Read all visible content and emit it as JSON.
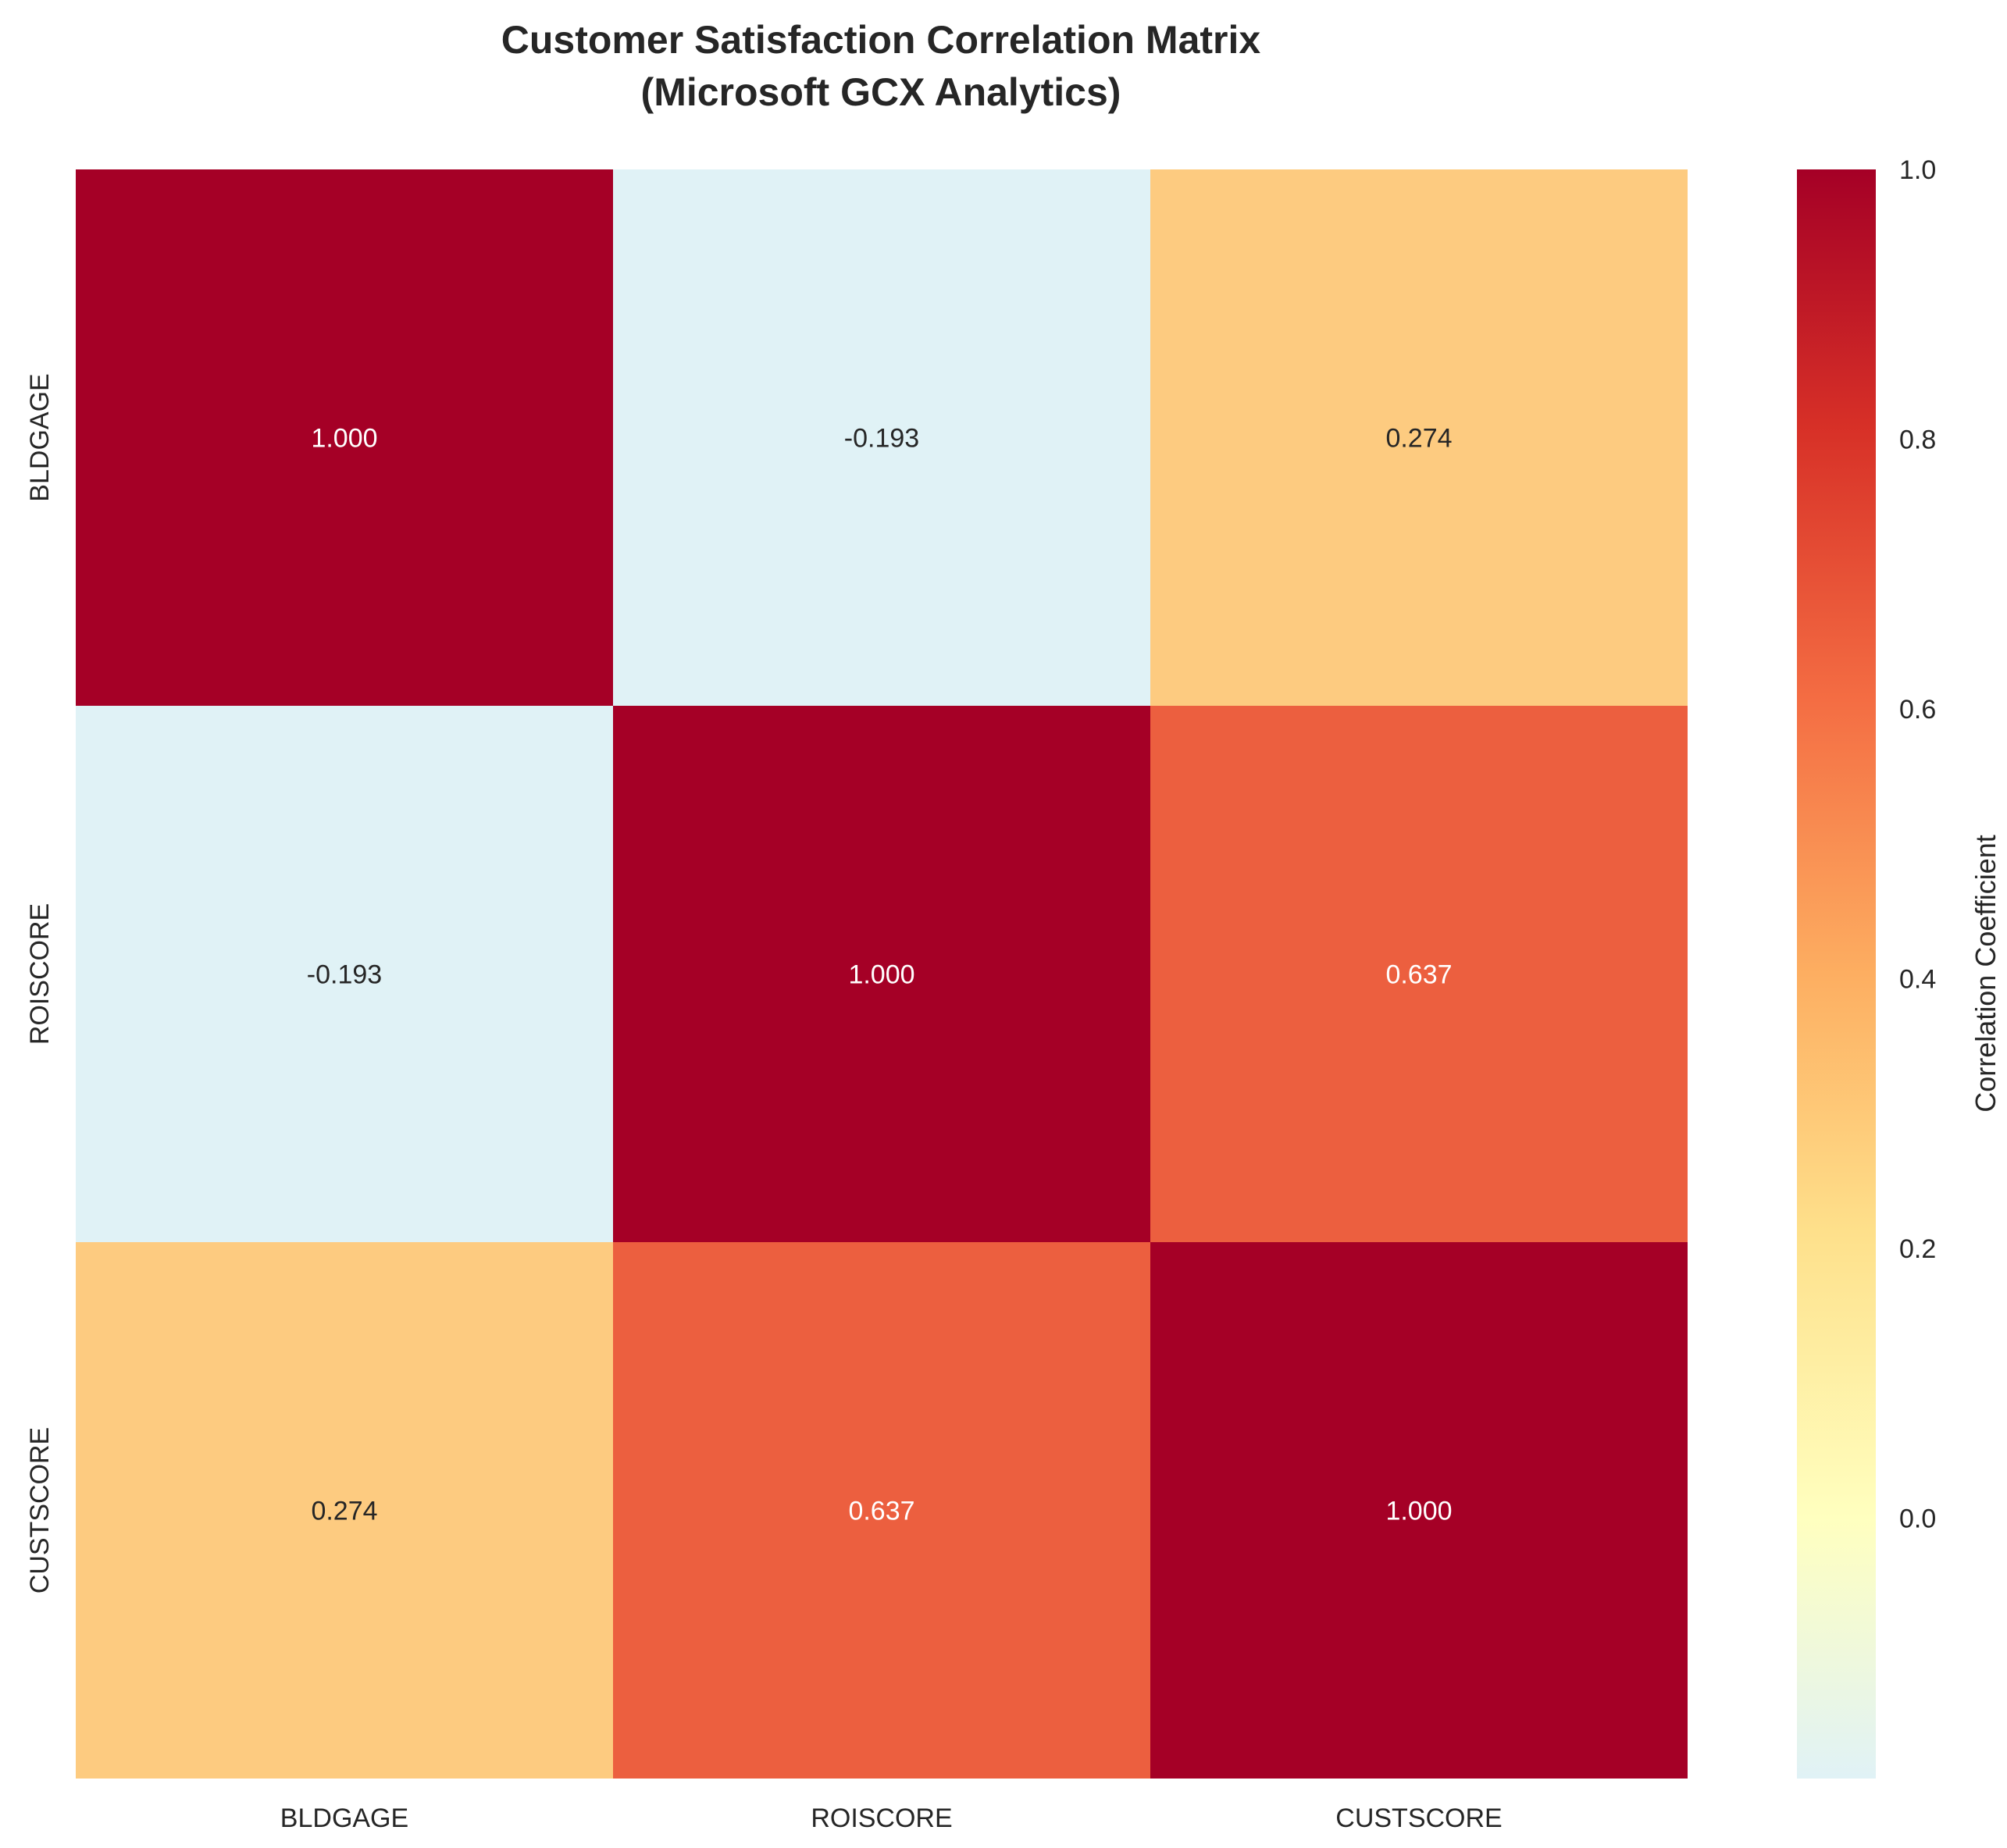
{
  "chart_data": {
    "type": "heatmap",
    "title": "Customer Satisfaction Correlation Matrix",
    "subtitle": "(Microsoft GCX Analytics)",
    "rows": [
      "BLDGAGE",
      "ROISCORE",
      "CUSTSCORE"
    ],
    "columns": [
      "BLDGAGE",
      "ROISCORE",
      "CUSTSCORE"
    ],
    "values": [
      [
        1.0,
        -0.193,
        0.274
      ],
      [
        -0.193,
        1.0,
        0.637
      ],
      [
        0.274,
        0.637,
        1.0
      ]
    ],
    "value_format": "0.000",
    "colormap": "RdYlBu_r",
    "colorbar": {
      "label": "Correlation Coefficient",
      "range": [
        -0.193,
        1.0
      ],
      "ticks": [
        "0.0",
        "0.2",
        "0.4",
        "0.6",
        "0.8",
        "1.0"
      ]
    },
    "colors": {
      "high": "#a50026",
      "mid_high": "#ec5f3f",
      "mid": "#fdcb80",
      "zero": "#ffffbf",
      "low": "#e0f2f6"
    }
  }
}
